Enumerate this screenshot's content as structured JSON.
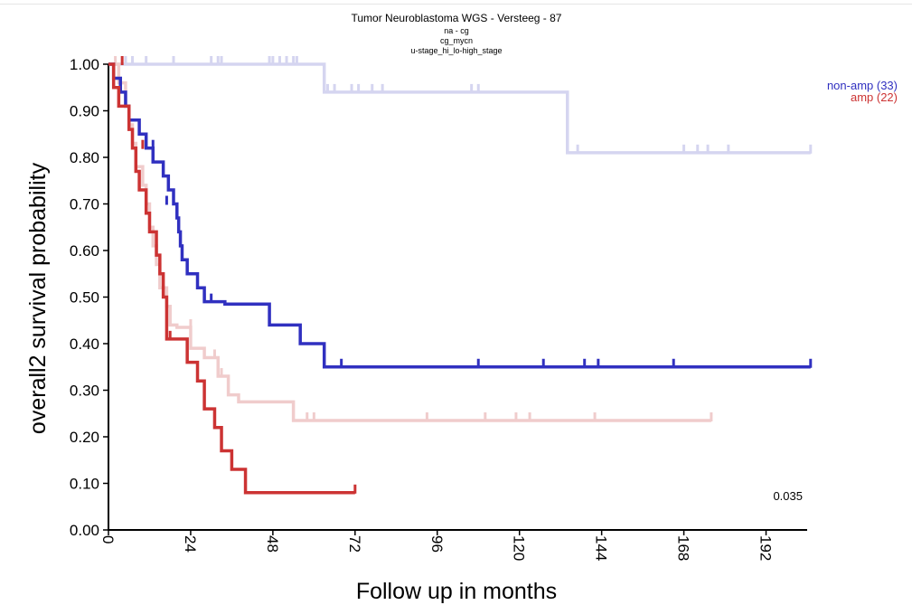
{
  "chart_data": {
    "type": "line",
    "subtype": "kaplan-meier",
    "title": "Tumor Neuroblastoma WGS - Versteeg - 87",
    "subtitle_lines": [
      "na - cg",
      "cg_mycn",
      "u-stage_hi_lo-high_stage"
    ],
    "xlabel": "Follow up in months",
    "ylabel": "overall2 survival probability",
    "xlim": [
      0,
      204
    ],
    "ylim": [
      0,
      1.0
    ],
    "x_ticks": [
      "0",
      "24",
      "48",
      "72",
      "96",
      "120",
      "144",
      "168",
      "192"
    ],
    "y_ticks": [
      "0.00",
      "0.10",
      "0.20",
      "0.30",
      "0.40",
      "0.50",
      "0.60",
      "0.70",
      "0.80",
      "0.90",
      "1.00"
    ],
    "p_value": "0.035",
    "legend_position": "top-right",
    "series": [
      {
        "name": "non-amp (33)",
        "color": "#3030c0",
        "emphasis": "primary",
        "steps": [
          [
            0,
            1.0
          ],
          [
            1.5,
            0.97
          ],
          [
            3.5,
            0.94
          ],
          [
            5,
            0.91
          ],
          [
            6,
            0.88
          ],
          [
            9,
            0.85
          ],
          [
            11,
            0.82
          ],
          [
            13,
            0.79
          ],
          [
            16,
            0.76
          ],
          [
            17.5,
            0.73
          ],
          [
            19,
            0.7
          ],
          [
            20,
            0.67
          ],
          [
            20.5,
            0.64
          ],
          [
            21,
            0.61
          ],
          [
            21.5,
            0.58
          ],
          [
            23,
            0.55
          ],
          [
            26,
            0.52
          ],
          [
            28,
            0.49
          ],
          [
            33,
            0.49
          ],
          [
            34,
            0.485
          ],
          [
            47,
            0.44
          ],
          [
            56,
            0.4
          ],
          [
            63,
            0.35
          ],
          [
            205,
            0.35
          ]
        ],
        "censor": [
          [
            13,
            0.82
          ],
          [
            17,
            0.7
          ],
          [
            28,
            0.49
          ],
          [
            30,
            0.49
          ],
          [
            68,
            0.35
          ],
          [
            108,
            0.35
          ],
          [
            127,
            0.35
          ],
          [
            139,
            0.35
          ],
          [
            143,
            0.35
          ],
          [
            165,
            0.35
          ],
          [
            205,
            0.35
          ]
        ]
      },
      {
        "name": "amp (22)",
        "color": "#cc3333",
        "emphasis": "primary",
        "steps": [
          [
            0,
            1.0
          ],
          [
            1.5,
            0.95
          ],
          [
            3,
            0.91
          ],
          [
            6,
            0.86
          ],
          [
            7,
            0.82
          ],
          [
            8,
            0.77
          ],
          [
            9,
            0.73
          ],
          [
            10,
            0.73
          ],
          [
            11,
            0.68
          ],
          [
            12,
            0.64
          ],
          [
            14,
            0.59
          ],
          [
            15,
            0.55
          ],
          [
            16,
            0.5
          ],
          [
            17,
            0.41
          ],
          [
            23,
            0.36
          ],
          [
            26,
            0.32
          ],
          [
            28,
            0.26
          ],
          [
            31,
            0.22
          ],
          [
            33,
            0.17
          ],
          [
            36,
            0.13
          ],
          [
            40,
            0.08
          ],
          [
            72,
            0.08
          ]
        ],
        "censor": [
          [
            4,
            1.0
          ],
          [
            10,
            0.82
          ],
          [
            18,
            0.41
          ],
          [
            72,
            0.08
          ]
        ]
      },
      {
        "name": "",
        "color": "#d5d5f0",
        "emphasis": "faint",
        "steps": [
          [
            0,
            1.0
          ],
          [
            63,
            0.94
          ],
          [
            134,
            0.81
          ],
          [
            205,
            0.81
          ]
        ],
        "censor": [
          [
            5,
            1.0
          ],
          [
            7,
            1.0
          ],
          [
            11,
            1.0
          ],
          [
            19,
            1.0
          ],
          [
            30,
            1.0
          ],
          [
            32,
            1.0
          ],
          [
            33,
            1.0
          ],
          [
            47,
            1.0
          ],
          [
            48,
            1.0
          ],
          [
            50,
            1.0
          ],
          [
            52,
            1.0
          ],
          [
            54,
            1.0
          ],
          [
            55,
            1.0
          ],
          [
            64,
            0.94
          ],
          [
            66,
            0.94
          ],
          [
            71,
            0.94
          ],
          [
            73,
            0.94
          ],
          [
            77,
            0.94
          ],
          [
            80,
            0.94
          ],
          [
            106,
            0.94
          ],
          [
            108,
            0.94
          ],
          [
            137,
            0.81
          ],
          [
            168,
            0.81
          ],
          [
            172,
            0.81
          ],
          [
            175,
            0.81
          ],
          [
            181,
            0.81
          ],
          [
            205,
            0.81
          ]
        ]
      },
      {
        "name": "",
        "color": "#f0cccc",
        "emphasis": "faint",
        "steps": [
          [
            0,
            1.0
          ],
          [
            3,
            0.96
          ],
          [
            5,
            0.91
          ],
          [
            6,
            0.87
          ],
          [
            7,
            0.83
          ],
          [
            8,
            0.78
          ],
          [
            10,
            0.74
          ],
          [
            11,
            0.7
          ],
          [
            12,
            0.65
          ],
          [
            13,
            0.61
          ],
          [
            14,
            0.57
          ],
          [
            15,
            0.52
          ],
          [
            17,
            0.48
          ],
          [
            18,
            0.44
          ],
          [
            20,
            0.435
          ],
          [
            24,
            0.39
          ],
          [
            28,
            0.37
          ],
          [
            32,
            0.33
          ],
          [
            35,
            0.29
          ],
          [
            38,
            0.275
          ],
          [
            54,
            0.235
          ],
          [
            176,
            0.235
          ]
        ],
        "censor": [
          [
            2,
            1.0
          ],
          [
            24,
            0.435
          ],
          [
            31,
            0.37
          ],
          [
            33,
            0.33
          ],
          [
            58,
            0.235
          ],
          [
            60,
            0.235
          ],
          [
            93,
            0.235
          ],
          [
            110,
            0.235
          ],
          [
            119,
            0.235
          ],
          [
            123,
            0.235
          ],
          [
            142,
            0.235
          ],
          [
            176,
            0.235
          ]
        ]
      }
    ]
  }
}
